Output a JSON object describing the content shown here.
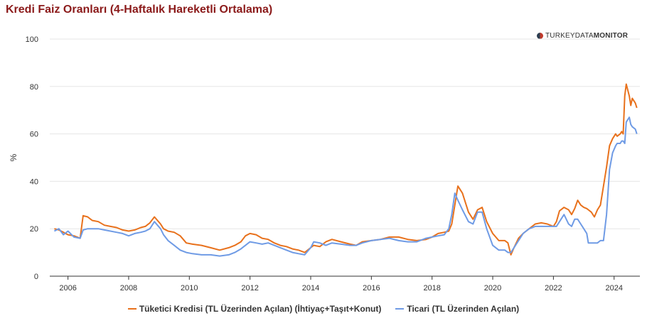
{
  "title": "Kredi Faiz Oranları (4-Haftalık Hareketli Ortalama)",
  "brand": {
    "part1": "TURKEY",
    "part2": "DATA",
    "part3": "MONITOR"
  },
  "colors": {
    "series1": "#e8711c",
    "series2": "#6f9be5",
    "grid": "#e6e6e6",
    "axis": "#333333"
  },
  "chart_data": {
    "type": "line",
    "ylabel": "%",
    "xlabel": "",
    "ylim": [
      0,
      100
    ],
    "yticks": [
      0,
      20,
      40,
      60,
      80,
      100
    ],
    "xlim": [
      2005.4,
      2024.85
    ],
    "xticks": [
      2006,
      2008,
      2010,
      2012,
      2014,
      2016,
      2018,
      2020,
      2022,
      2024
    ],
    "grid": true,
    "legend_position": "bottom",
    "series": [
      {
        "name": "Tüketici Kredisi (TL Üzerinden Açılan) (İhtiyaç+Taşıt+Konut)",
        "x": [
          2005.55,
          2005.7,
          2005.85,
          2006.0,
          2006.2,
          2006.4,
          2006.5,
          2006.65,
          2006.8,
          2007.0,
          2007.2,
          2007.4,
          2007.6,
          2007.8,
          2008.0,
          2008.2,
          2008.4,
          2008.55,
          2008.7,
          2008.85,
          2008.95,
          2009.05,
          2009.15,
          2009.3,
          2009.5,
          2009.7,
          2009.9,
          2010.1,
          2010.4,
          2010.7,
          2011.0,
          2011.3,
          2011.5,
          2011.7,
          2011.85,
          2012.0,
          2012.2,
          2012.4,
          2012.6,
          2012.8,
          2013.0,
          2013.2,
          2013.4,
          2013.6,
          2013.8,
          2014.0,
          2014.1,
          2014.3,
          2014.5,
          2014.7,
          2015.0,
          2015.3,
          2015.5,
          2015.7,
          2016.0,
          2016.3,
          2016.6,
          2016.9,
          2017.2,
          2017.5,
          2017.8,
          2018.0,
          2018.2,
          2018.4,
          2018.55,
          2018.65,
          2018.75,
          2018.85,
          2019.0,
          2019.2,
          2019.35,
          2019.5,
          2019.65,
          2019.8,
          2020.0,
          2020.2,
          2020.3,
          2020.4,
          2020.5,
          2020.6,
          2020.7,
          2020.85,
          2021.0,
          2021.2,
          2021.4,
          2021.6,
          2021.8,
          2022.0,
          2022.1,
          2022.2,
          2022.35,
          2022.5,
          2022.6,
          2022.7,
          2022.8,
          2022.9,
          2023.0,
          2023.1,
          2023.15,
          2023.25,
          2023.35,
          2023.45,
          2023.55,
          2023.65,
          2023.75,
          2023.85,
          2023.95,
          2024.05,
          2024.1,
          2024.2,
          2024.25,
          2024.3,
          2024.35,
          2024.4,
          2024.5,
          2024.55,
          2024.6,
          2024.7,
          2024.75
        ],
        "values": [
          20,
          19.5,
          18.5,
          17.5,
          17,
          16,
          25.5,
          25,
          23.5,
          23,
          21.5,
          21,
          20.5,
          19.5,
          19,
          19.5,
          20.5,
          21,
          22.5,
          25,
          23.5,
          22,
          20,
          19,
          18.5,
          17,
          14,
          13.5,
          13,
          12,
          11,
          12,
          13,
          14.5,
          17,
          18,
          17.5,
          16,
          15.5,
          14,
          13,
          12.5,
          11.5,
          11,
          10,
          12,
          13,
          12.5,
          14.5,
          15.5,
          14.5,
          13.5,
          13,
          14.5,
          15,
          15.5,
          16.5,
          16.5,
          15.5,
          15,
          15.5,
          16.5,
          18,
          18.5,
          19,
          22,
          30,
          38,
          35,
          27,
          24,
          28,
          29,
          23,
          18,
          15,
          15,
          15,
          14,
          9,
          12,
          16,
          18,
          20,
          22,
          22.5,
          22,
          21,
          23,
          27.5,
          29,
          28,
          26,
          28.5,
          32,
          30,
          29,
          28.5,
          28,
          27,
          25,
          28,
          30,
          38,
          46,
          55,
          58,
          60,
          59,
          60,
          61,
          60,
          76,
          81,
          76,
          72,
          75,
          73,
          71
        ],
        "marks": "orange"
      },
      {
        "name": "Ticari (TL Üzerinden Açılan)",
        "x": [
          2005.55,
          2005.7,
          2005.85,
          2006.0,
          2006.2,
          2006.4,
          2006.5,
          2006.65,
          2006.8,
          2007.0,
          2007.2,
          2007.4,
          2007.6,
          2007.8,
          2008.0,
          2008.2,
          2008.4,
          2008.55,
          2008.7,
          2008.85,
          2008.95,
          2009.05,
          2009.15,
          2009.3,
          2009.5,
          2009.7,
          2009.9,
          2010.1,
          2010.4,
          2010.7,
          2011.0,
          2011.3,
          2011.5,
          2011.7,
          2011.85,
          2012.0,
          2012.2,
          2012.4,
          2012.6,
          2012.8,
          2013.0,
          2013.2,
          2013.4,
          2013.6,
          2013.8,
          2014.0,
          2014.1,
          2014.3,
          2014.5,
          2014.7,
          2015.0,
          2015.3,
          2015.5,
          2015.7,
          2016.0,
          2016.3,
          2016.6,
          2016.9,
          2017.2,
          2017.5,
          2017.8,
          2018.0,
          2018.2,
          2018.4,
          2018.55,
          2018.65,
          2018.75,
          2018.85,
          2019.0,
          2019.2,
          2019.35,
          2019.5,
          2019.65,
          2019.8,
          2020.0,
          2020.2,
          2020.3,
          2020.4,
          2020.5,
          2020.6,
          2020.7,
          2020.85,
          2021.0,
          2021.2,
          2021.4,
          2021.6,
          2021.8,
          2022.0,
          2022.1,
          2022.2,
          2022.35,
          2022.5,
          2022.6,
          2022.7,
          2022.8,
          2022.9,
          2023.0,
          2023.1,
          2023.15,
          2023.25,
          2023.35,
          2023.45,
          2023.55,
          2023.65,
          2023.75,
          2023.85,
          2023.95,
          2024.05,
          2024.1,
          2024.2,
          2024.25,
          2024.3,
          2024.35,
          2024.4,
          2024.5,
          2024.55,
          2024.6,
          2024.7,
          2024.75
        ],
        "values": [
          19,
          20,
          17.5,
          19,
          16.5,
          16,
          19.5,
          20,
          20,
          20,
          19.5,
          19,
          18.5,
          18,
          17,
          18,
          18.5,
          19,
          20,
          23,
          21.5,
          20,
          17.5,
          15,
          13,
          11,
          10,
          9.5,
          9,
          9,
          8.5,
          9,
          10,
          11.5,
          13,
          14.5,
          14,
          13.5,
          14,
          13,
          12,
          11,
          10,
          9.5,
          9,
          12,
          14.5,
          14,
          13,
          14,
          13.5,
          13,
          13,
          14,
          15,
          15.5,
          16,
          15,
          14.5,
          14.5,
          16,
          16.5,
          17,
          17.5,
          20,
          26,
          35,
          32,
          28,
          23,
          22,
          27,
          27,
          20,
          13,
          11,
          11,
          11,
          10,
          10,
          12,
          15,
          18,
          20,
          21,
          21,
          21,
          21,
          21,
          23,
          26,
          22,
          21,
          24,
          24,
          22,
          20,
          18,
          14,
          14,
          14,
          14,
          15,
          15,
          26,
          45,
          52,
          55,
          56,
          56,
          57,
          57,
          56,
          65,
          67,
          64,
          63,
          62,
          60
        ],
        "marks": "blue"
      }
    ]
  }
}
